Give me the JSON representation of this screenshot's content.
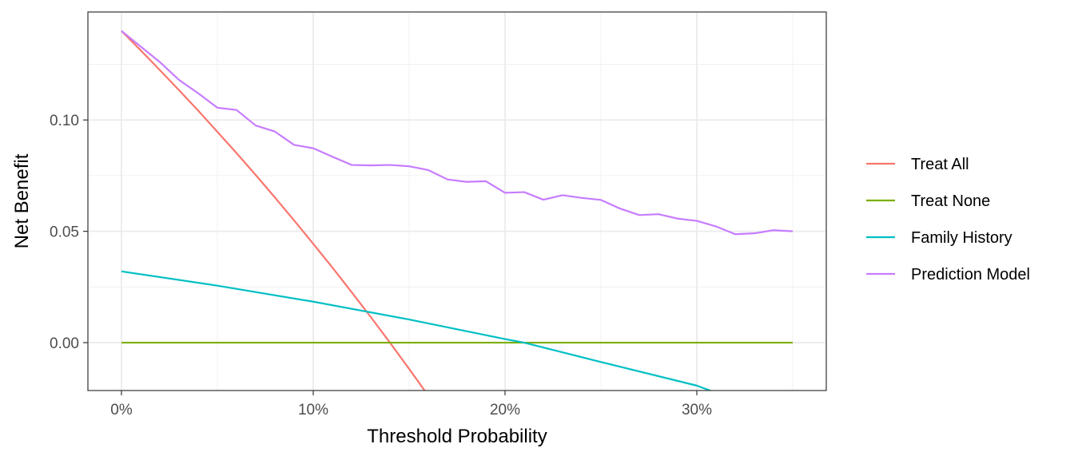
{
  "chart_data": {
    "type": "line",
    "title": "",
    "xlabel": "Threshold Probability",
    "ylabel": "Net Benefit",
    "xlim": [
      -0.0175,
      0.3675
    ],
    "ylim": [
      -0.0215,
      0.1485
    ],
    "x_ticks": [
      0,
      0.1,
      0.2,
      0.3
    ],
    "x_tick_labels": [
      "0%",
      "10%",
      "20%",
      "30%"
    ],
    "y_ticks": [
      0,
      0.05,
      0.1
    ],
    "y_tick_labels": [
      "0.00",
      "0.05",
      "0.10"
    ],
    "grid": true,
    "legend_position": "right",
    "series": [
      {
        "name": "Treat All",
        "color": "#F8766D",
        "x": [
          0,
          0.01,
          0.02,
          0.03,
          0.04,
          0.05,
          0.06,
          0.07,
          0.08,
          0.09,
          0.1,
          0.11,
          0.12,
          0.13,
          0.14,
          0.15,
          0.16
        ],
        "y": [
          0.14,
          0.1313,
          0.1224,
          0.1134,
          0.1042,
          0.0947,
          0.0851,
          0.0753,
          0.0652,
          0.0549,
          0.0444,
          0.0337,
          0.0227,
          0.0115,
          0.0,
          -0.0118,
          -0.0238
        ]
      },
      {
        "name": "Treat None",
        "color": "#7CAE00",
        "x": [
          0,
          0.35
        ],
        "y": [
          0,
          0
        ]
      },
      {
        "name": "Family History",
        "color": "#00BFC4",
        "x": [
          0,
          0.05,
          0.1,
          0.15,
          0.2,
          0.21,
          0.25,
          0.3,
          0.31
        ],
        "y": [
          0.032,
          0.0256,
          0.0184,
          0.0104,
          0.0016,
          0.0,
          -0.0087,
          -0.0193,
          -0.0225
        ]
      },
      {
        "name": "Prediction Model",
        "color": "#C77CFF",
        "x": [
          0,
          0.01,
          0.02,
          0.03,
          0.04,
          0.05,
          0.06,
          0.07,
          0.08,
          0.09,
          0.1,
          0.11,
          0.12,
          0.13,
          0.14,
          0.15,
          0.16,
          0.17,
          0.18,
          0.19,
          0.2,
          0.21,
          0.22,
          0.23,
          0.24,
          0.25,
          0.26,
          0.27,
          0.28,
          0.29,
          0.3,
          0.31,
          0.32,
          0.33,
          0.34,
          0.35
        ],
        "y": [
          0.14,
          0.133,
          0.126,
          0.118,
          0.112,
          0.1055,
          0.1045,
          0.0975,
          0.0948,
          0.0888,
          0.0873,
          0.0835,
          0.0798,
          0.0796,
          0.0798,
          0.0792,
          0.0775,
          0.0733,
          0.0722,
          0.0725,
          0.0673,
          0.0676,
          0.0642,
          0.0662,
          0.065,
          0.0641,
          0.0602,
          0.0573,
          0.0577,
          0.0557,
          0.0547,
          0.0522,
          0.0487,
          0.0491,
          0.0505,
          0.05
        ]
      }
    ]
  }
}
